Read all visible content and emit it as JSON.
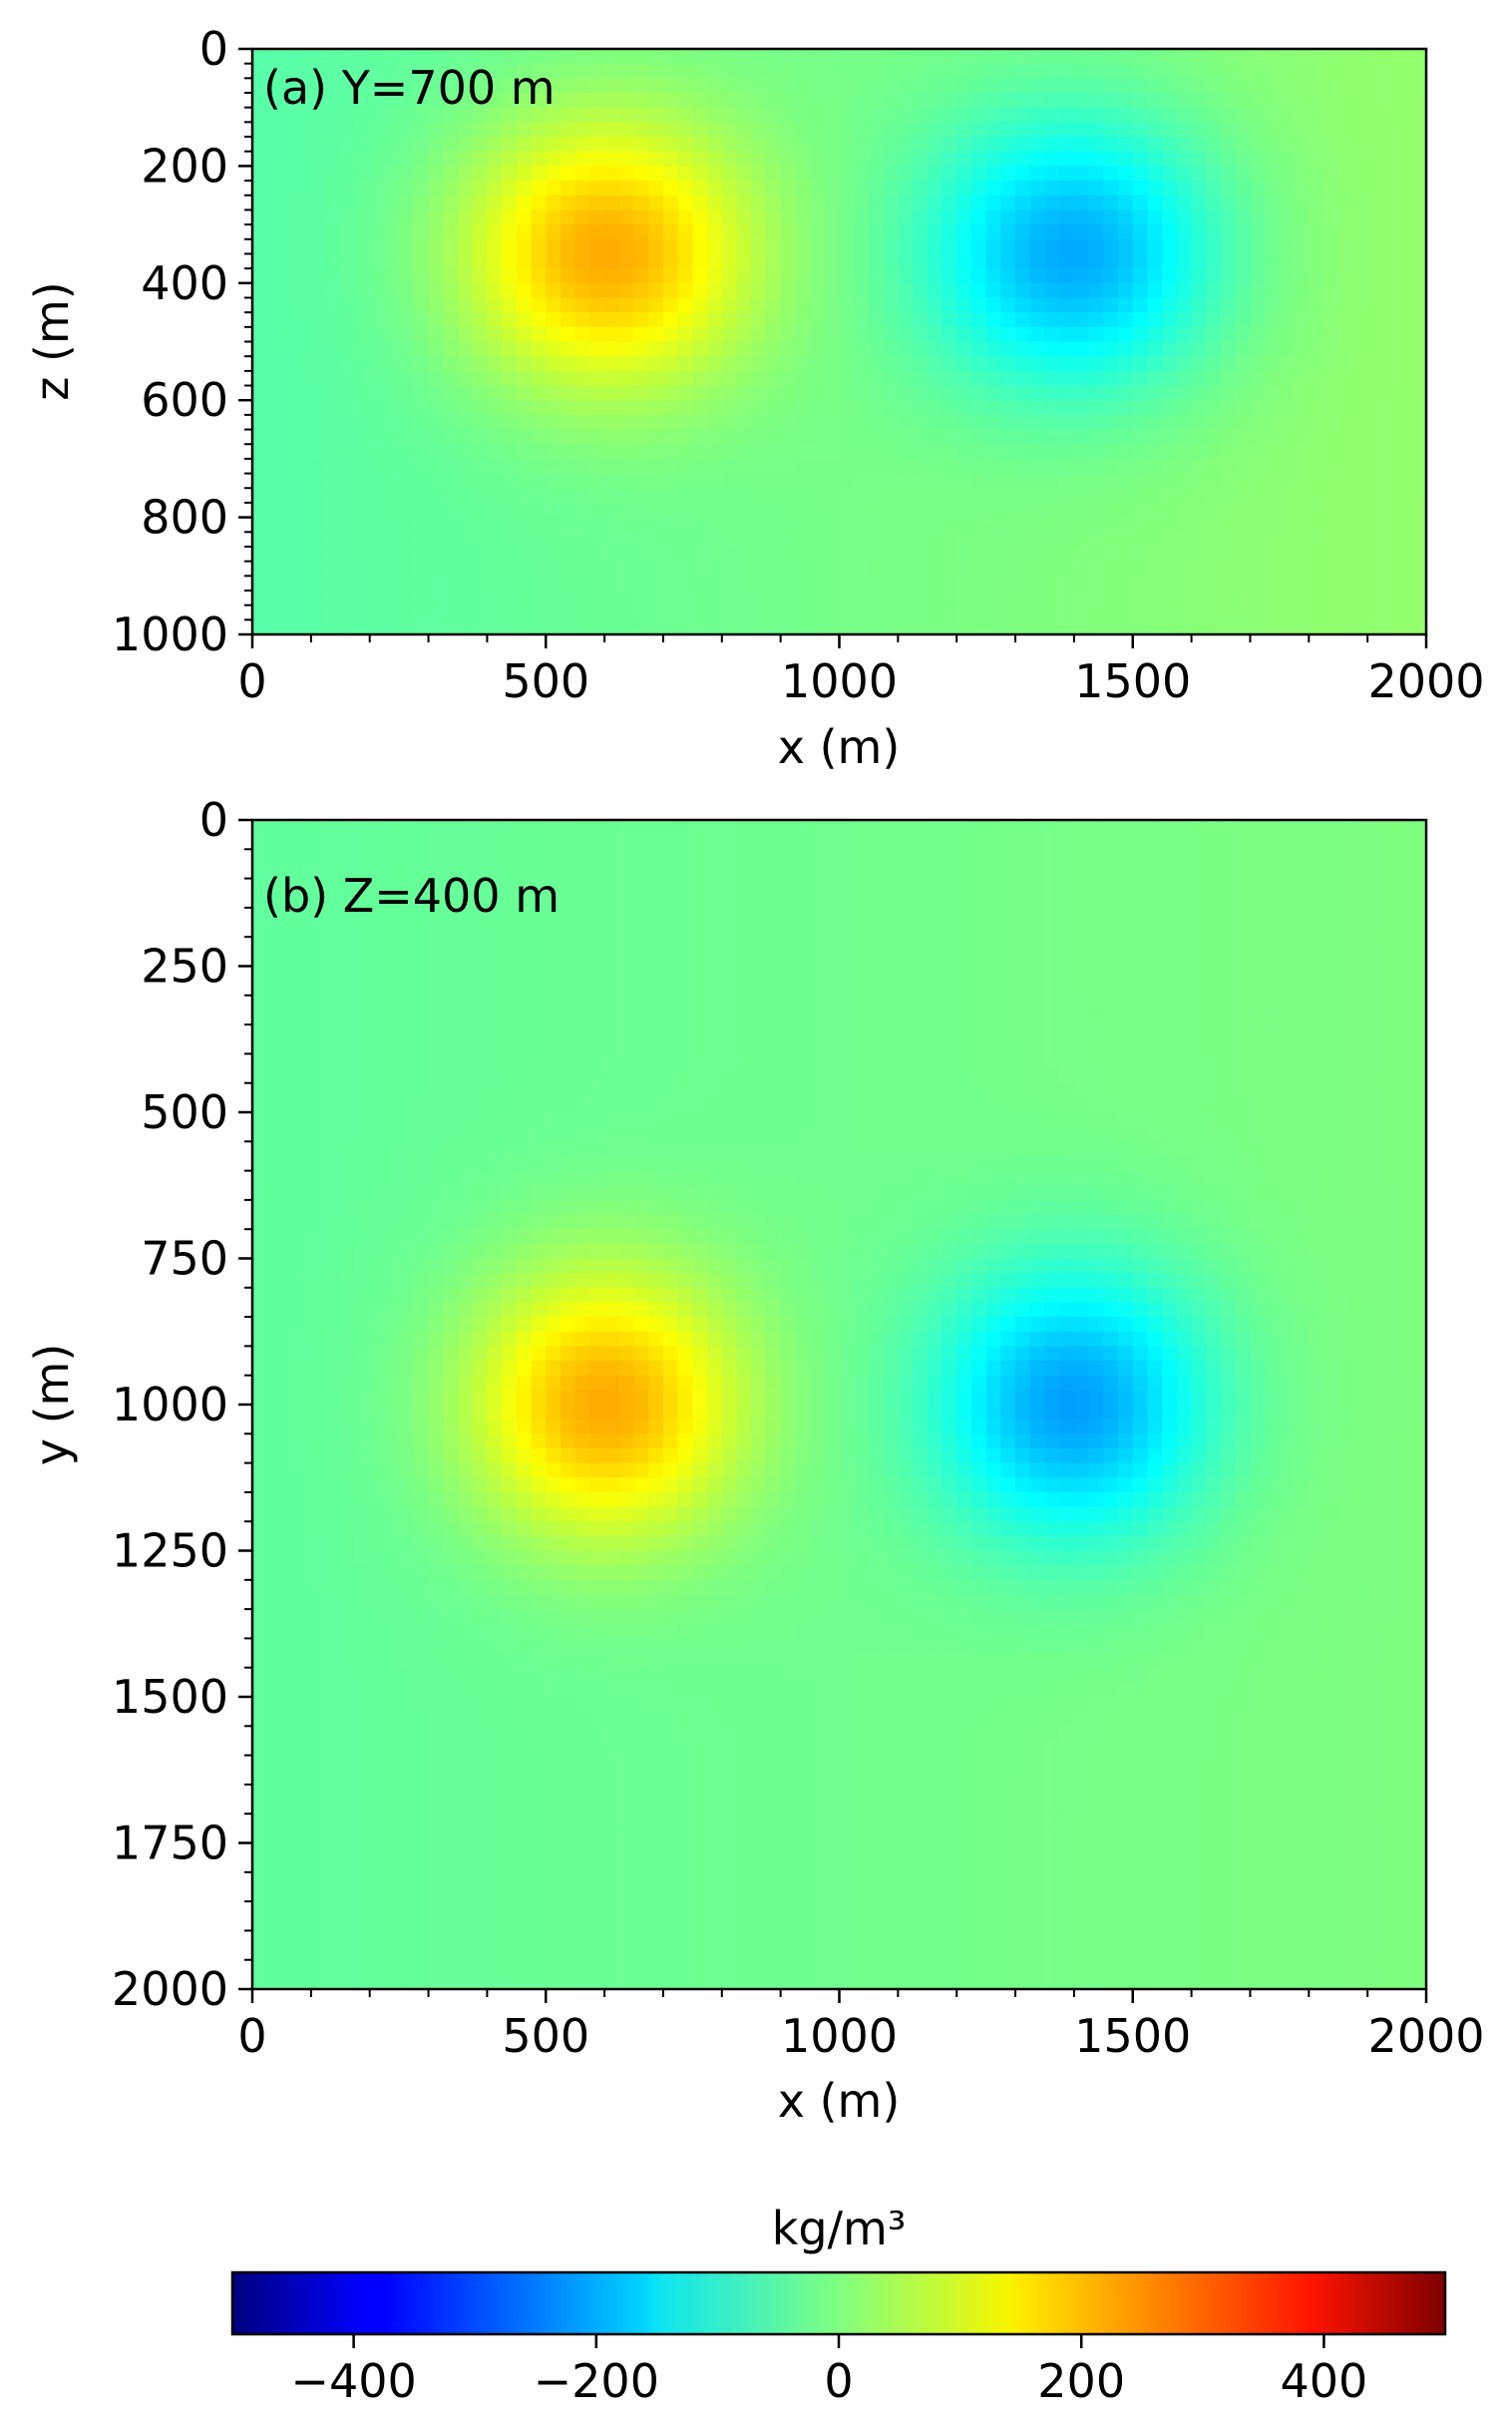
{
  "chart_data": [
    {
      "type": "heatmap",
      "panel_label": "(a) Y=700 m",
      "xlabel": "x (m)",
      "ylabel": "z (m)",
      "xlim": [
        0,
        2000
      ],
      "ylim": [
        0,
        1000
      ],
      "y_inverted": true,
      "xticks": [
        "0",
        "500",
        "1000",
        "1500",
        "2000"
      ],
      "yticks": [
        "0",
        "200",
        "400",
        "600",
        "800",
        "1000"
      ],
      "xtick_values": [
        0,
        500,
        1000,
        1500,
        2000
      ],
      "ytick_values": [
        0,
        200,
        400,
        600,
        800,
        1000
      ],
      "anomalies": [
        {
          "sign": "positive",
          "center_x": 600,
          "center_z": 350,
          "peak_value": 230
        },
        {
          "sign": "negative",
          "center_x": 1400,
          "center_z": 350,
          "peak_value": -210
        }
      ]
    },
    {
      "type": "heatmap",
      "panel_label": "(b) Z=400 m",
      "xlabel": "x (m)",
      "ylabel": "y (m)",
      "xlim": [
        0,
        2000
      ],
      "ylim": [
        0,
        2000
      ],
      "y_inverted": true,
      "xticks": [
        "0",
        "500",
        "1000",
        "1500",
        "2000"
      ],
      "yticks": [
        "0",
        "250",
        "500",
        "750",
        "1000",
        "1250",
        "1500",
        "1750",
        "2000"
      ],
      "xtick_values": [
        0,
        500,
        1000,
        1500,
        2000
      ],
      "ytick_values": [
        0,
        250,
        500,
        750,
        1000,
        1250,
        1500,
        1750,
        2000
      ],
      "anomalies": [
        {
          "sign": "positive",
          "center_x": 600,
          "center_y": 1000,
          "peak_value": 230
        },
        {
          "sign": "negative",
          "center_x": 1400,
          "center_y": 1000,
          "peak_value": -210
        }
      ]
    }
  ],
  "colorbar": {
    "label": "kg/m³",
    "colormap": "jet",
    "range": [
      -500,
      500
    ],
    "ticks": [
      "−400",
      "−200",
      "0",
      "200",
      "400"
    ],
    "tick_values": [
      -400,
      -200,
      0,
      200,
      400
    ]
  }
}
